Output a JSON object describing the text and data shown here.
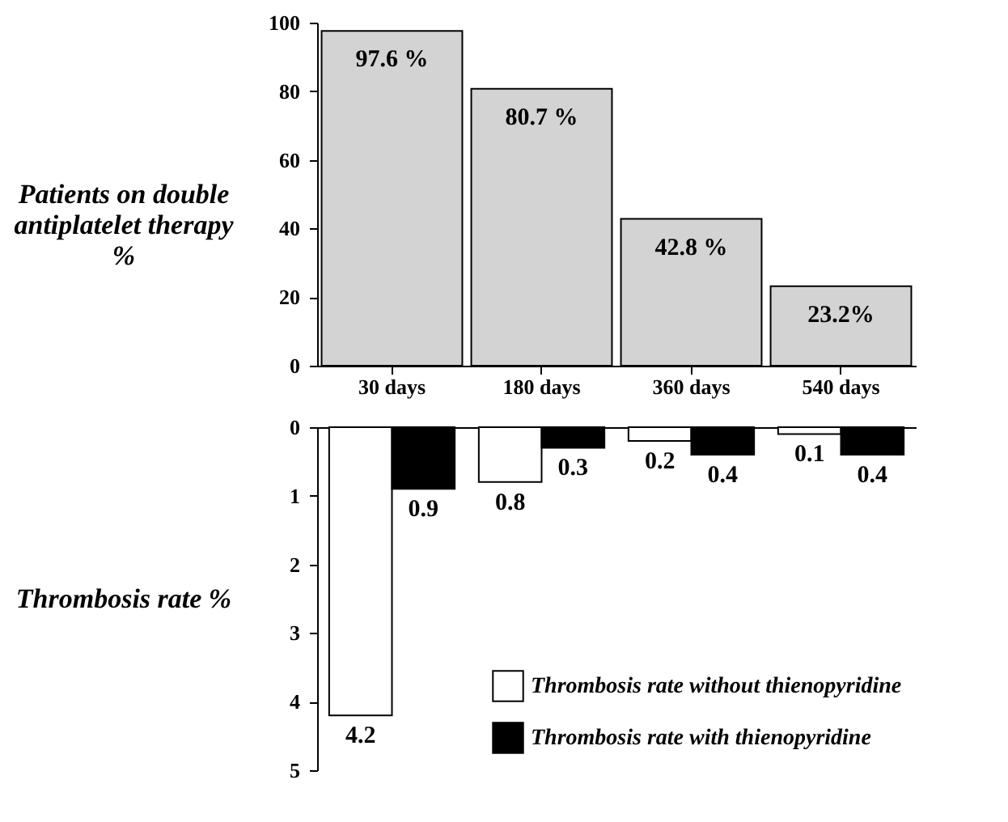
{
  "chart_data": [
    {
      "type": "bar",
      "ylabel": "Patients on double antiplatelet therapy %",
      "categories": [
        "30 days",
        "180 days",
        "360 days",
        "540 days"
      ],
      "values": [
        97.6,
        80.7,
        42.8,
        23.2
      ],
      "color": "#d3d3d3",
      "value_labels": [
        "97.6 %",
        "80.7 %",
        "42.8 %",
        "23.2%"
      ],
      "ylim": [
        0,
        100
      ],
      "yticks": [
        0,
        20,
        40,
        60,
        80,
        100
      ]
    },
    {
      "type": "bar",
      "ylabel": "Thrombosis rate %",
      "categories": [
        "30 days",
        "180 days",
        "360 days",
        "540 days"
      ],
      "series": [
        {
          "name": "Thrombosis rate without thienopyridine",
          "color": "#ffffff",
          "values": [
            4.2,
            0.8,
            0.2,
            0.1
          ]
        },
        {
          "name": "Thrombosis rate with thienopyridine",
          "color": "#000000",
          "values": [
            0.9,
            0.3,
            0.4,
            0.4
          ]
        }
      ],
      "data_labels": true,
      "legend": "bottom right",
      "ylim": [
        5,
        0
      ],
      "yticks": [
        0,
        1,
        2,
        3,
        4,
        5
      ],
      "tick_labels": "y"
    }
  ]
}
